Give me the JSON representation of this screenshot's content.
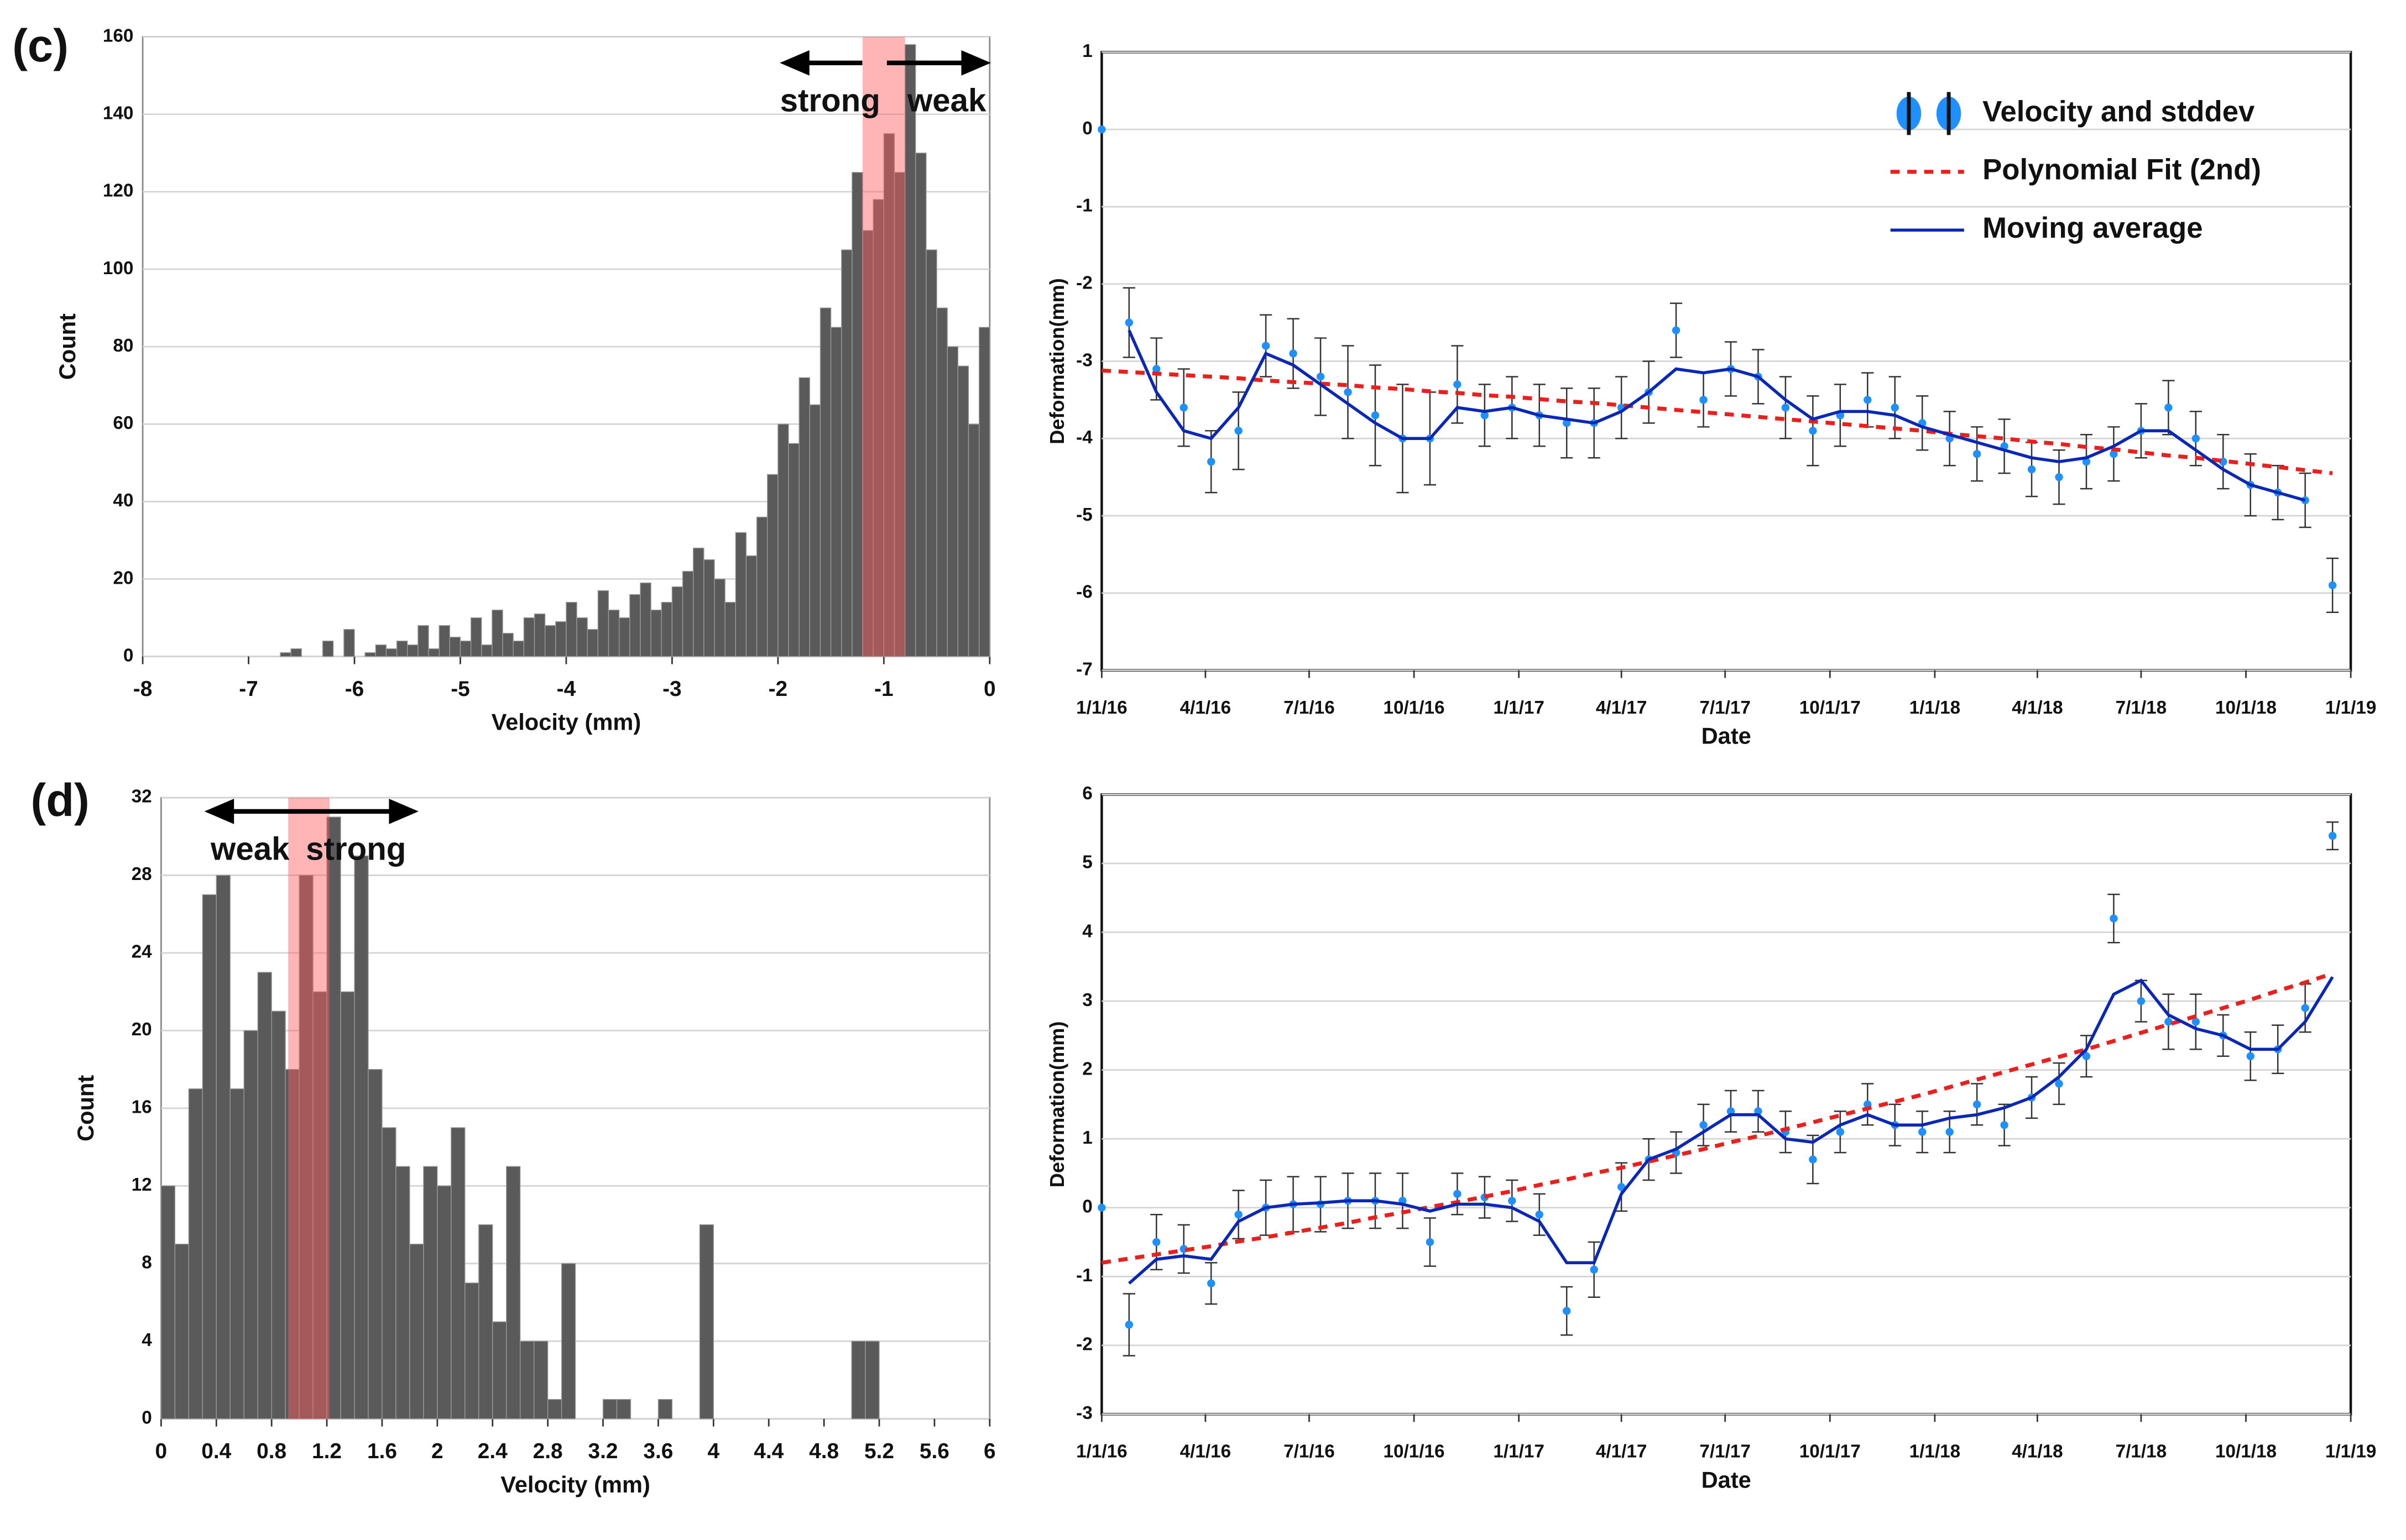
{
  "chart_data": [
    {
      "type": "histogram",
      "panel_label": "(c)",
      "xlabel": "Velocity (mm)",
      "ylabel": "Count",
      "annotations": [
        "strong",
        "weak"
      ],
      "highlight": [
        -1.2,
        -0.8
      ],
      "highlight_color": "#ff5a5a",
      "color": "#5a5a5a",
      "grid": true,
      "bins": [
        -6.7,
        -6.6,
        -6.5,
        -6.4,
        -6.3,
        -6.2,
        -6.1,
        -6.0,
        -5.9,
        -5.8,
        -5.7,
        -5.6,
        -5.5,
        -5.4,
        -5.3,
        -5.2,
        -5.1,
        -5.0,
        -4.9,
        -4.8,
        -4.7,
        -4.6,
        -4.5,
        -4.4,
        -4.3,
        -4.2,
        -4.1,
        -4.0,
        -3.9,
        -3.8,
        -3.7,
        -3.6,
        -3.5,
        -3.4,
        -3.3,
        -3.2,
        -3.1,
        -3.0,
        -2.9,
        -2.8,
        -2.7,
        -2.6,
        -2.5,
        -2.4,
        -2.3,
        -2.2,
        -2.1,
        -2.0,
        -1.9,
        -1.8,
        -1.7,
        -1.6,
        -1.5,
        -1.4,
        -1.3,
        -1.2,
        -1.1,
        -1.0,
        -0.9,
        -0.8,
        -0.7,
        -0.6,
        -0.5,
        -0.4,
        -0.3,
        -0.2,
        -0.1,
        0
      ],
      "values": [
        1,
        2,
        0,
        0,
        4,
        0,
        7,
        0,
        1,
        3,
        2,
        4,
        3,
        8,
        2,
        8,
        5,
        4,
        10,
        3,
        12,
        6,
        4,
        10,
        11,
        8,
        9,
        14,
        10,
        7,
        17,
        12,
        10,
        16,
        19,
        12,
        14,
        18,
        22,
        28,
        25,
        20,
        14,
        32,
        26,
        36,
        47,
        60,
        55,
        72,
        65,
        90,
        85,
        105,
        125,
        110,
        118,
        135,
        125,
        158,
        130,
        105,
        90,
        80,
        75,
        60,
        85
      ],
      "xlim": [
        -8,
        0
      ],
      "xticks": [
        -8,
        -7,
        -6,
        -5,
        -4,
        -3,
        -2,
        -1,
        0
      ],
      "ylim": [
        0,
        160
      ],
      "yticks": [
        0,
        20,
        40,
        60,
        80,
        100,
        120,
        140,
        160
      ]
    },
    {
      "type": "line",
      "xlabel": "Date",
      "ylabel": "Deformation(mm)",
      "grid": true,
      "legend": "upper right",
      "x": [
        "2016-01-01",
        "2016-01-25",
        "2016-02-18",
        "2016-03-13",
        "2016-04-06",
        "2016-04-30",
        "2016-05-24",
        "2016-06-17",
        "2016-07-11",
        "2016-08-04",
        "2016-08-28",
        "2016-09-21",
        "2016-10-15",
        "2016-11-08",
        "2016-12-02",
        "2016-12-26",
        "2017-01-19",
        "2017-02-12",
        "2017-03-08",
        "2017-04-01",
        "2017-04-25",
        "2017-05-19",
        "2017-06-12",
        "2017-07-06",
        "2017-07-30",
        "2017-08-23",
        "2017-09-16",
        "2017-10-10",
        "2017-11-03",
        "2017-11-27",
        "2017-12-21",
        "2018-01-14",
        "2018-02-07",
        "2018-03-03",
        "2018-03-27",
        "2018-04-20",
        "2018-05-14",
        "2018-06-07",
        "2018-07-01",
        "2018-07-25",
        "2018-08-18",
        "2018-09-11",
        "2018-10-05",
        "2018-10-29",
        "2018-11-22",
        "2018-12-16"
      ],
      "series": [
        {
          "name": "Velocity and stddev",
          "color": "#1e90ff",
          "values": [
            0,
            -2.5,
            -3.1,
            -3.6,
            -4.3,
            -3.9,
            -2.8,
            -2.9,
            -3.2,
            -3.4,
            -3.7,
            -4.0,
            -4.0,
            -3.3,
            -3.7,
            -3.6,
            -3.7,
            -3.8,
            -3.8,
            -3.6,
            -3.4,
            -2.6,
            -3.5,
            -3.1,
            -3.2,
            -3.6,
            -3.9,
            -3.7,
            -3.5,
            -3.6,
            -3.8,
            -4.0,
            -4.2,
            -4.1,
            -4.4,
            -4.5,
            -4.3,
            -4.2,
            -3.9,
            -3.6,
            -4.0,
            -4.3,
            -4.6,
            -4.7,
            -4.8,
            -5.9
          ],
          "errors": [
            0,
            0.45,
            0.4,
            0.5,
            0.4,
            0.5,
            0.4,
            0.45,
            0.5,
            0.6,
            0.65,
            0.7,
            0.6,
            0.5,
            0.4,
            0.4,
            0.4,
            0.45,
            0.45,
            0.4,
            0.4,
            0.35,
            0.35,
            0.35,
            0.35,
            0.4,
            0.45,
            0.4,
            0.35,
            0.4,
            0.35,
            0.35,
            0.35,
            0.35,
            0.35,
            0.35,
            0.35,
            0.35,
            0.35,
            0.35,
            0.35,
            0.35,
            0.4,
            0.35,
            0.35,
            0.35
          ]
        },
        {
          "name": "Polynomial Fit (2nd)",
          "color": "#e8201e",
          "dashed": true,
          "values": [
            -3.12,
            -3.14,
            -3.16,
            -3.18,
            -3.2,
            -3.22,
            -3.25,
            -3.27,
            -3.29,
            -3.31,
            -3.34,
            -3.36,
            -3.39,
            -3.41,
            -3.44,
            -3.46,
            -3.49,
            -3.52,
            -3.54,
            -3.57,
            -3.6,
            -3.63,
            -3.66,
            -3.69,
            -3.72,
            -3.75,
            -3.78,
            -3.81,
            -3.84,
            -3.87,
            -3.9,
            -3.94,
            -3.97,
            -4.0,
            -4.04,
            -4.07,
            -4.11,
            -4.14,
            -4.18,
            -4.22,
            -4.25,
            -4.29,
            -4.33,
            -4.37,
            -4.41,
            -4.45
          ]
        },
        {
          "name": "Moving average",
          "color": "#0a28b4",
          "values": [
            null,
            -2.6,
            -3.4,
            -3.9,
            -4.0,
            -3.6,
            -2.9,
            -3.05,
            -3.3,
            -3.55,
            -3.8,
            -4.0,
            -4.0,
            -3.6,
            -3.65,
            -3.6,
            -3.7,
            -3.75,
            -3.8,
            -3.65,
            -3.4,
            -3.1,
            -3.15,
            -3.1,
            -3.2,
            -3.5,
            -3.75,
            -3.65,
            -3.65,
            -3.7,
            -3.85,
            -3.95,
            -4.05,
            -4.15,
            -4.25,
            -4.3,
            -4.25,
            -4.1,
            -3.9,
            -3.9,
            -4.15,
            -4.4,
            -4.6,
            -4.7,
            -4.8,
            null
          ]
        }
      ],
      "xlim": [
        "2016-01-01",
        "2019-01-01"
      ],
      "xticks": [
        {
          "value": "2016-01-01",
          "label": "1/1/16"
        },
        {
          "value": "2016-04-01",
          "label": "4/1/16"
        },
        {
          "value": "2016-07-01",
          "label": "7/1/16"
        },
        {
          "value": "2016-10-01",
          "label": "10/1/16"
        },
        {
          "value": "2017-01-01",
          "label": "1/1/17"
        },
        {
          "value": "2017-04-01",
          "label": "4/1/17"
        },
        {
          "value": "2017-07-01",
          "label": "7/1/17"
        },
        {
          "value": "2017-10-01",
          "label": "10/1/17"
        },
        {
          "value": "2018-01-01",
          "label": "1/1/18"
        },
        {
          "value": "2018-04-01",
          "label": "4/1/18"
        },
        {
          "value": "2018-07-01",
          "label": "7/1/18"
        },
        {
          "value": "2018-10-01",
          "label": "10/1/18"
        },
        {
          "value": "2019-01-01",
          "label": "1/1/19"
        }
      ],
      "ylim": [
        -7,
        1
      ],
      "yticks": [
        -7,
        -6,
        -5,
        -4,
        -3,
        -2,
        -1,
        0,
        1
      ]
    },
    {
      "type": "histogram",
      "panel_label": "(d)",
      "xlabel": "Velocity (mm)",
      "ylabel": "Count",
      "annotations": [
        "weak",
        "strong"
      ],
      "highlight": [
        0.92,
        1.22
      ],
      "highlight_color": "#ff5a5a",
      "color": "#5a5a5a",
      "grid": true,
      "bins": [
        0,
        0.1,
        0.2,
        0.3,
        0.4,
        0.5,
        0.6,
        0.7,
        0.8,
        0.9,
        1.0,
        1.1,
        1.2,
        1.3,
        1.4,
        1.5,
        1.6,
        1.7,
        1.8,
        1.9,
        2.0,
        2.1,
        2.2,
        2.3,
        2.4,
        2.5,
        2.6,
        2.7,
        2.8,
        2.9,
        3.0,
        3.1,
        3.2,
        3.3,
        3.4,
        3.5,
        3.6,
        3.7,
        3.8,
        3.9,
        4.0,
        4.1,
        4.2,
        4.3,
        4.4,
        4.5,
        4.6,
        4.7,
        4.8,
        4.9,
        5.0,
        5.1,
        5.2
      ],
      "values": [
        12,
        9,
        17,
        27,
        28,
        17,
        20,
        23,
        21,
        18,
        28,
        22,
        31,
        22,
        29,
        18,
        15,
        13,
        9,
        13,
        12,
        15,
        7,
        10,
        5,
        13,
        4,
        4,
        1,
        8,
        0,
        0,
        1,
        1,
        0,
        0,
        1,
        0,
        0,
        10,
        0,
        0,
        0,
        0,
        0,
        0,
        0,
        0,
        0,
        0,
        4,
        4
      ],
      "xlim": [
        0,
        6
      ],
      "xticks": [
        0,
        0.4,
        0.8,
        1.2,
        1.6,
        2,
        2.4,
        2.8,
        3.2,
        3.6,
        4,
        4.4,
        4.8,
        5.2,
        5.6,
        6
      ],
      "ylim": [
        0,
        32
      ],
      "yticks": [
        0,
        4,
        8,
        12,
        16,
        20,
        24,
        28,
        32
      ]
    },
    {
      "type": "line",
      "xlabel": "Date",
      "ylabel": "Deformation(mm)",
      "grid": true,
      "x": [
        "2016-01-01",
        "2016-01-25",
        "2016-02-18",
        "2016-03-13",
        "2016-04-06",
        "2016-04-30",
        "2016-05-24",
        "2016-06-17",
        "2016-07-11",
        "2016-08-04",
        "2016-08-28",
        "2016-09-21",
        "2016-10-15",
        "2016-11-08",
        "2016-12-02",
        "2016-12-26",
        "2017-01-19",
        "2017-02-12",
        "2017-03-08",
        "2017-04-01",
        "2017-04-25",
        "2017-05-19",
        "2017-06-12",
        "2017-07-06",
        "2017-07-30",
        "2017-08-23",
        "2017-09-16",
        "2017-10-10",
        "2017-11-03",
        "2017-11-27",
        "2017-12-21",
        "2018-01-14",
        "2018-02-07",
        "2018-03-03",
        "2018-03-27",
        "2018-04-20",
        "2018-05-14",
        "2018-06-07",
        "2018-07-01",
        "2018-07-25",
        "2018-08-18",
        "2018-09-11",
        "2018-10-05",
        "2018-10-29",
        "2018-11-22",
        "2018-12-16"
      ],
      "series": [
        {
          "color": "#1e90ff",
          "values": [
            0,
            -1.7,
            -0.5,
            -0.6,
            -1.1,
            -0.1,
            0.0,
            0.05,
            0.05,
            0.1,
            0.1,
            0.1,
            -0.5,
            0.2,
            0.15,
            0.1,
            -0.1,
            -1.5,
            -0.9,
            0.3,
            0.7,
            0.8,
            1.2,
            1.4,
            1.4,
            1.1,
            0.7,
            1.1,
            1.5,
            1.2,
            1.1,
            1.1,
            1.5,
            1.2,
            1.6,
            1.8,
            2.2,
            4.2,
            3.0,
            2.7,
            2.7,
            2.5,
            2.2,
            2.3,
            2.9,
            5.4
          ],
          "errors": [
            0,
            0.45,
            0.4,
            0.35,
            0.3,
            0.35,
            0.4,
            0.4,
            0.4,
            0.4,
            0.4,
            0.4,
            0.35,
            0.3,
            0.3,
            0.3,
            0.3,
            0.35,
            0.4,
            0.35,
            0.3,
            0.3,
            0.3,
            0.3,
            0.3,
            0.3,
            0.35,
            0.3,
            0.3,
            0.3,
            0.3,
            0.3,
            0.3,
            0.3,
            0.3,
            0.3,
            0.3,
            0.35,
            0.3,
            0.4,
            0.4,
            0.3,
            0.35,
            0.35,
            0.35,
            0.2
          ]
        },
        {
          "color": "#e8201e",
          "dashed": true,
          "values": [
            -0.8,
            -0.74,
            -0.68,
            -0.62,
            -0.56,
            -0.49,
            -0.43,
            -0.36,
            -0.29,
            -0.22,
            -0.14,
            -0.07,
            0.01,
            0.08,
            0.16,
            0.24,
            0.33,
            0.41,
            0.5,
            0.58,
            0.67,
            0.76,
            0.85,
            0.95,
            1.04,
            1.14,
            1.24,
            1.34,
            1.44,
            1.54,
            1.64,
            1.75,
            1.86,
            1.97,
            2.08,
            2.19,
            2.3,
            2.42,
            2.54,
            2.66,
            2.78,
            2.9,
            3.02,
            3.15,
            3.27,
            3.4
          ]
        },
        {
          "color": "#0a28b4",
          "values": [
            null,
            -1.1,
            -0.75,
            -0.7,
            -0.75,
            -0.2,
            0.0,
            0.05,
            0.07,
            0.1,
            0.1,
            0.05,
            -0.05,
            0.05,
            0.05,
            0.0,
            -0.2,
            -0.8,
            -0.8,
            0.2,
            0.7,
            0.85,
            1.1,
            1.35,
            1.35,
            1.0,
            0.95,
            1.2,
            1.35,
            1.2,
            1.2,
            1.3,
            1.35,
            1.45,
            1.6,
            1.9,
            2.3,
            3.1,
            3.3,
            2.8,
            2.6,
            2.5,
            2.3,
            2.3,
            2.7,
            3.35
          ]
        }
      ],
      "xlim": [
        "2016-01-01",
        "2019-01-01"
      ],
      "xticks": [
        {
          "value": "2016-01-01",
          "label": "1/1/16"
        },
        {
          "value": "2016-04-01",
          "label": "4/1/16"
        },
        {
          "value": "2016-07-01",
          "label": "7/1/16"
        },
        {
          "value": "2016-10-01",
          "label": "10/1/16"
        },
        {
          "value": "2017-01-01",
          "label": "1/1/17"
        },
        {
          "value": "2017-04-01",
          "label": "4/1/17"
        },
        {
          "value": "2017-07-01",
          "label": "7/1/17"
        },
        {
          "value": "2017-10-01",
          "label": "10/1/17"
        },
        {
          "value": "2018-01-01",
          "label": "1/1/18"
        },
        {
          "value": "2018-04-01",
          "label": "4/1/18"
        },
        {
          "value": "2018-07-01",
          "label": "7/1/18"
        },
        {
          "value": "2018-10-01",
          "label": "10/1/18"
        },
        {
          "value": "2019-01-01",
          "label": "1/1/19"
        }
      ],
      "ylim": [
        -3,
        6
      ],
      "yticks": [
        -3,
        -2,
        -1,
        0,
        1,
        2,
        3,
        4,
        5,
        6
      ]
    }
  ]
}
